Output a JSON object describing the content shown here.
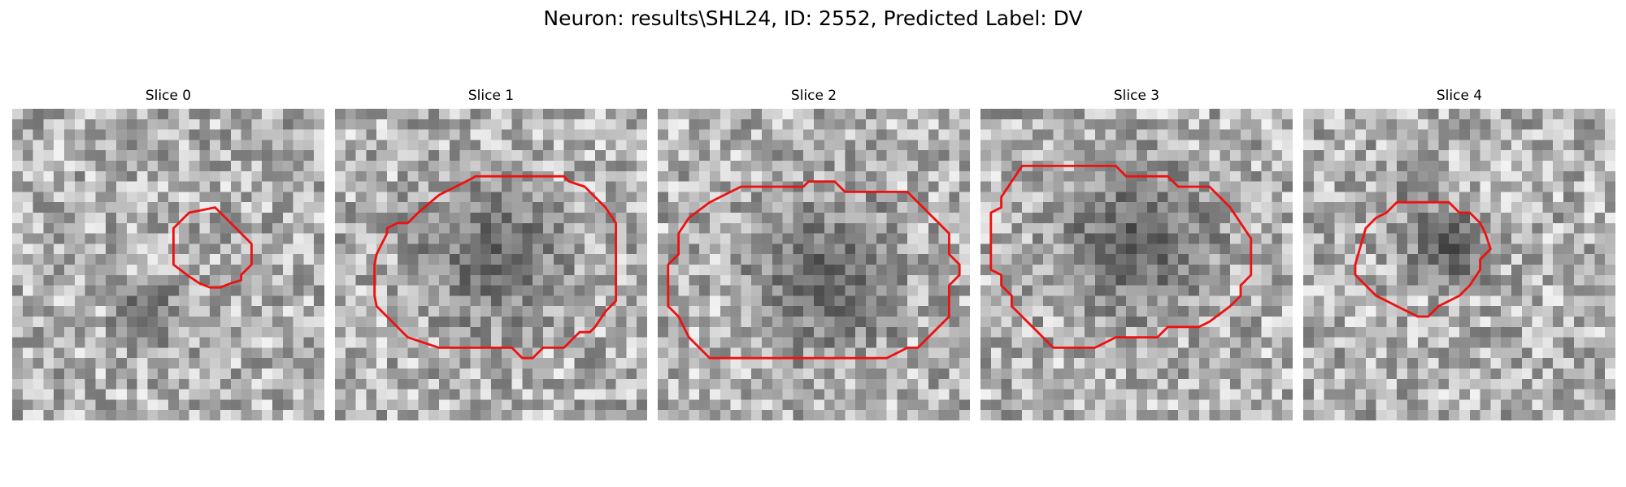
{
  "figure": {
    "title": "Neuron: results\\SHL24, ID: 2552, Predicted Label: DV"
  },
  "colors": {
    "contour": "#ee1111",
    "background": "#ffffff"
  },
  "grid": {
    "cells": 30
  },
  "panels": [
    {
      "title": "Slice 0",
      "texture_seed": 11,
      "dark_blobs": [
        {
          "cx": 13,
          "cy": 19.5,
          "r": 4.5,
          "s": 0.55
        },
        {
          "cx": 27,
          "cy": 4.5,
          "r": 3.2,
          "s": 0.7
        }
      ],
      "contour": [
        [
          15.5,
          11.5
        ],
        [
          17,
          10
        ],
        [
          19.5,
          9.5
        ],
        [
          21,
          11
        ],
        [
          23,
          13
        ],
        [
          23,
          15
        ],
        [
          22,
          16
        ],
        [
          22,
          16.5
        ],
        [
          21,
          16.8
        ],
        [
          20,
          17.2
        ],
        [
          19,
          17.2
        ],
        [
          18,
          16.8
        ],
        [
          16.8,
          16
        ],
        [
          15.5,
          15
        ],
        [
          15.5,
          13
        ]
      ]
    },
    {
      "title": "Slice 1",
      "texture_seed": 23,
      "dark_blobs": [
        {
          "cx": 15,
          "cy": 14,
          "r": 10,
          "s": 0.55
        }
      ],
      "contour": [
        [
          10,
          8.3
        ],
        [
          13,
          6.8
        ],
        [
          13.5,
          6.5
        ],
        [
          22,
          6.5
        ],
        [
          22.5,
          7
        ],
        [
          24,
          7.5
        ],
        [
          26,
          9.5
        ],
        [
          27,
          11
        ],
        [
          27,
          13.5
        ],
        [
          27,
          18.5
        ],
        [
          26,
          19.5
        ],
        [
          25,
          21
        ],
        [
          24.5,
          21.5
        ],
        [
          23.5,
          21.5
        ],
        [
          22,
          23
        ],
        [
          20,
          23
        ],
        [
          19,
          24
        ],
        [
          18,
          24
        ],
        [
          17,
          23
        ],
        [
          16,
          23
        ],
        [
          10,
          23
        ],
        [
          7,
          22
        ],
        [
          4,
          19
        ],
        [
          3.8,
          18
        ],
        [
          3.8,
          15
        ],
        [
          4,
          14
        ],
        [
          4.5,
          13
        ],
        [
          5,
          12
        ],
        [
          5,
          11.5
        ],
        [
          6,
          11
        ],
        [
          7,
          11
        ],
        [
          8,
          10
        ]
      ]
    },
    {
      "title": "Slice 2",
      "texture_seed": 37,
      "dark_blobs": [
        {
          "cx": 16,
          "cy": 16,
          "r": 11,
          "s": 0.55
        }
      ],
      "contour": [
        [
          3,
          10.5
        ],
        [
          5,
          9
        ],
        [
          7,
          8
        ],
        [
          8,
          7.5
        ],
        [
          14,
          7.5
        ],
        [
          14.5,
          7
        ],
        [
          17,
          7
        ],
        [
          17.5,
          7.5
        ],
        [
          18,
          8
        ],
        [
          24,
          8
        ],
        [
          25,
          9
        ],
        [
          26,
          10
        ],
        [
          27,
          11
        ],
        [
          28,
          12
        ],
        [
          28,
          14
        ],
        [
          29,
          15
        ],
        [
          29,
          16
        ],
        [
          28,
          17
        ],
        [
          28,
          18
        ],
        [
          28,
          20
        ],
        [
          27,
          21
        ],
        [
          26,
          22
        ],
        [
          25,
          23
        ],
        [
          24,
          23
        ],
        [
          22,
          24
        ],
        [
          5,
          24
        ],
        [
          4,
          23
        ],
        [
          3,
          22
        ],
        [
          2,
          20
        ],
        [
          1,
          19
        ],
        [
          1,
          16
        ],
        [
          1,
          15
        ],
        [
          2,
          14
        ],
        [
          2,
          12
        ]
      ]
    },
    {
      "title": "Slice 3",
      "texture_seed": 53,
      "dark_blobs": [
        {
          "cx": 15,
          "cy": 12.5,
          "r": 11,
          "s": 0.5
        }
      ],
      "contour": [
        [
          4,
          5.5
        ],
        [
          13,
          5.5
        ],
        [
          14,
          6.5
        ],
        [
          18,
          6.5
        ],
        [
          19,
          7.5
        ],
        [
          22,
          7.5
        ],
        [
          24,
          9.5
        ],
        [
          25,
          11
        ],
        [
          26,
          12.5
        ],
        [
          26,
          16
        ],
        [
          25,
          17
        ],
        [
          25,
          18
        ],
        [
          24,
          19
        ],
        [
          22,
          20.5
        ],
        [
          21,
          21
        ],
        [
          18,
          21
        ],
        [
          17,
          22
        ],
        [
          13,
          22
        ],
        [
          11,
          23
        ],
        [
          7,
          23
        ],
        [
          5,
          21
        ],
        [
          3,
          19
        ],
        [
          3,
          18
        ],
        [
          2,
          17
        ],
        [
          2,
          16
        ],
        [
          1,
          15.5
        ],
        [
          1,
          10
        ],
        [
          2,
          9.5
        ],
        [
          2,
          8.5
        ]
      ]
    },
    {
      "title": "Slice 4",
      "texture_seed": 71,
      "dark_blobs": [
        {
          "cx": 14,
          "cy": 13.5,
          "r": 5.5,
          "s": 0.45
        },
        {
          "cx": 11,
          "cy": 7,
          "r": 4,
          "s": 0.7
        }
      ],
      "contour": [
        [
          6,
          11.5
        ],
        [
          7,
          10.5
        ],
        [
          8,
          10
        ],
        [
          9,
          9
        ],
        [
          14,
          9
        ],
        [
          15,
          10
        ],
        [
          16,
          10
        ],
        [
          17,
          11
        ],
        [
          17.5,
          12
        ],
        [
          18,
          13.5
        ],
        [
          17.5,
          14
        ],
        [
          17,
          14.5
        ],
        [
          17,
          15.5
        ],
        [
          16,
          17
        ],
        [
          15,
          18
        ],
        [
          13,
          19
        ],
        [
          12,
          20
        ],
        [
          11,
          20
        ],
        [
          10,
          19.5
        ],
        [
          9,
          19
        ],
        [
          8,
          18.5
        ],
        [
          7,
          18
        ],
        [
          5,
          16
        ],
        [
          5,
          15
        ]
      ]
    }
  ]
}
